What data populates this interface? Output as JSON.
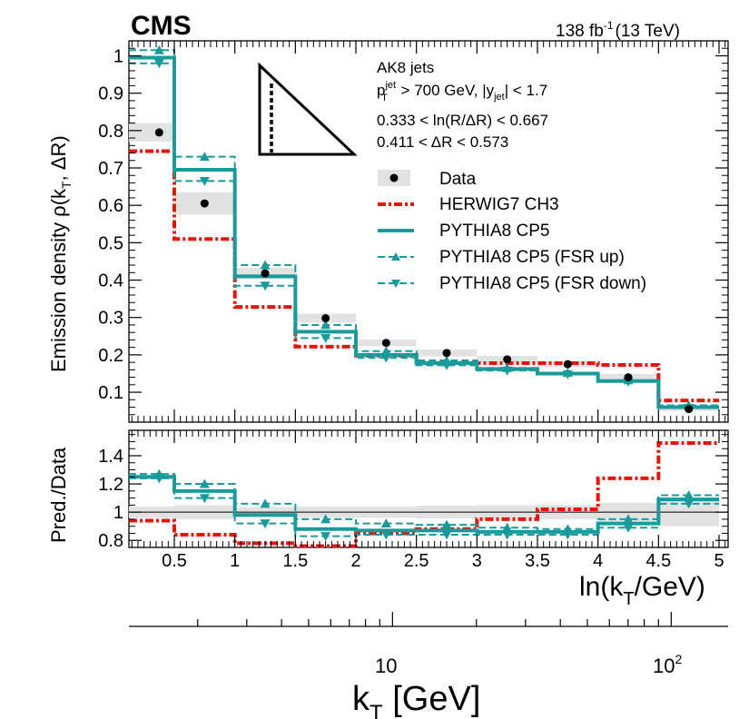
{
  "header": {
    "experiment": "CMS",
    "luminosity": "138 fb",
    "luminosity_exp": "-1",
    "energy": "(13 TeV)"
  },
  "chart_data": {
    "type": "step",
    "bins": [
      0.125,
      0.5,
      1.0,
      1.5,
      2.0,
      2.5,
      3.0,
      3.5,
      4.0,
      4.5,
      5.0
    ],
    "data_x": [
      0.375,
      0.75,
      1.25,
      1.75,
      2.25,
      2.75,
      3.25,
      3.75,
      4.25,
      4.75
    ],
    "top": {
      "ylabel": "Emission density ρ(kT, ΔR)",
      "ylabel_main": "Emission density ρ(k",
      "ylabel_sub": "T",
      "ylabel_tail": ", ΔR)",
      "ylim": [
        0.02,
        1.04
      ],
      "yticks": [
        0.1,
        0.2,
        0.3,
        0.4,
        0.5,
        0.6,
        0.7,
        0.8,
        0.9,
        1.0
      ],
      "ytick_labels": [
        "0.1",
        "0.2",
        "0.3",
        "0.4",
        "0.5",
        "0.6",
        "0.7",
        "0.8",
        "0.9",
        "1"
      ],
      "annotations": {
        "jets": "AK8 jets",
        "pt_cut": "p_T^jet > 700 GeV, |y_jet| < 1.7",
        "pt_p": "p",
        "pt_sup": "jet",
        "pt_sub": "T",
        "pt_mid": " > 700 GeV, |y",
        "pt_ysub": "jet",
        "pt_end": "| < 1.7",
        "lnR": "0.333 < ln(R/ΔR) < 0.667",
        "dR": "0.411 < ΔR < 0.573"
      },
      "legend_position": "top-right",
      "legend": [
        "Data",
        "HERWIG7 CH3",
        "PYTHIA8 CP5",
        "PYTHIA8 CP5 (FSR up)",
        "PYTHIA8 CP5 (FSR down)"
      ],
      "series": [
        {
          "name": "Data",
          "values": [
            0.795,
            0.605,
            0.418,
            0.298,
            0.232,
            0.205,
            0.188,
            0.175,
            0.14,
            0.055
          ],
          "unc": [
            0.025,
            0.03,
            0.015,
            0.012,
            0.009,
            0.009,
            0.009,
            0.008,
            0.009,
            0.005
          ],
          "color": "#000000"
        },
        {
          "name": "HERWIG7 CH3",
          "values": [
            0.745,
            0.51,
            0.328,
            0.222,
            0.198,
            0.178,
            0.178,
            0.178,
            0.173,
            0.078
          ],
          "color": "#e8140c"
        },
        {
          "name": "PYTHIA8 CP5",
          "values": [
            0.995,
            0.695,
            0.41,
            0.262,
            0.2,
            0.178,
            0.162,
            0.15,
            0.13,
            0.06
          ],
          "color": "#1a9a9a"
        },
        {
          "name": "PYTHIA8 CP5 (FSR up)",
          "values": [
            1.015,
            0.73,
            0.44,
            0.28,
            0.21,
            0.185,
            0.165,
            0.152,
            0.132,
            0.065
          ],
          "color": "#1a9a9a"
        },
        {
          "name": "PYTHIA8 CP5 (FSR down)",
          "values": [
            0.98,
            0.665,
            0.385,
            0.245,
            0.192,
            0.172,
            0.158,
            0.148,
            0.128,
            0.058
          ],
          "color": "#1a9a9a"
        }
      ]
    },
    "ratio": {
      "ylabel": "Pred./Data",
      "ylim": [
        0.75,
        1.58
      ],
      "yticks": [
        0.8,
        1.0,
        1.2,
        1.4
      ],
      "ytick_labels": [
        "0.8",
        "1",
        "1.2",
        "1.4"
      ],
      "data_band": [
        0.04,
        0.05,
        0.035,
        0.04,
        0.04,
        0.045,
        0.05,
        0.05,
        0.065,
        0.1
      ],
      "series": [
        {
          "name": "HERWIG7 CH3",
          "values": [
            0.94,
            0.84,
            0.78,
            0.76,
            0.85,
            0.88,
            0.95,
            1.02,
            1.24,
            1.49
          ]
        },
        {
          "name": "PYTHIA8 CP5",
          "values": [
            1.25,
            1.15,
            0.98,
            0.88,
            0.87,
            0.87,
            0.86,
            0.86,
            0.92,
            1.09
          ]
        },
        {
          "name": "PYTHIA8 CP5 (FSR up)",
          "values": [
            1.27,
            1.2,
            1.06,
            0.95,
            0.92,
            0.91,
            0.89,
            0.88,
            0.95,
            1.12
          ]
        },
        {
          "name": "PYTHIA8 CP5 (FSR down)",
          "values": [
            1.24,
            1.1,
            0.92,
            0.83,
            0.84,
            0.84,
            0.84,
            0.84,
            0.89,
            1.06
          ]
        }
      ]
    },
    "x_axis": {
      "label": "ln(kT/GeV)",
      "label_main": "ln(k",
      "label_sub": "T",
      "label_tail": "/GeV)",
      "xlim": [
        0.125,
        5.075
      ],
      "ticks": [
        0.5,
        1.0,
        1.5,
        2.0,
        2.5,
        3.0,
        3.5,
        4.0,
        4.5,
        5.0
      ],
      "tick_labels": [
        "0.5",
        "1",
        "1.5",
        "2",
        "2.5",
        "3",
        "3.5",
        "4",
        "4.5",
        "5"
      ]
    },
    "kt_axis": {
      "label": "kT [GeV]",
      "label_main": "k",
      "label_sub": "T",
      "label_tail": " [GeV]",
      "tick_labels": [
        "10",
        "10",
        "2"
      ],
      "major_values": [
        10,
        100
      ]
    }
  }
}
